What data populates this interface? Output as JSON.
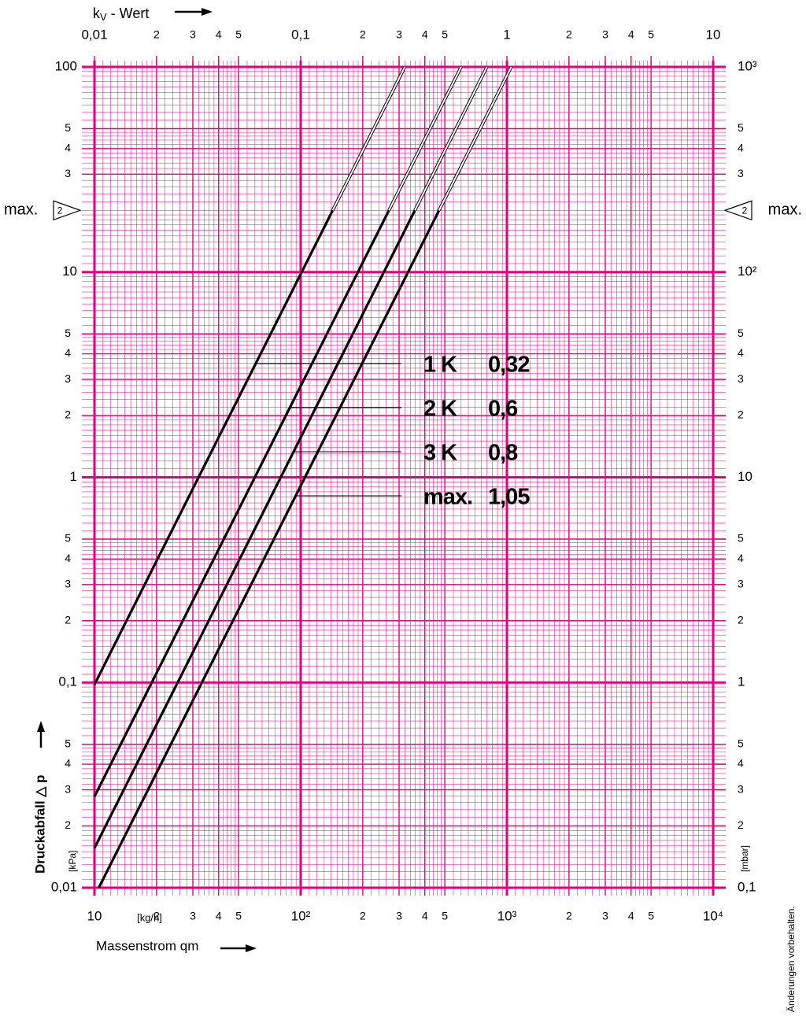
{
  "chart_data": {
    "type": "line",
    "kv_axis_label": {
      "main": "k",
      "sub": "V",
      "rest": " - Wert"
    },
    "x_label": "Massenstrom qm",
    "x_unit": "[kg/h]",
    "y_label": "Druckabfall △ p",
    "y_unit": "[kPa]",
    "y2_unit": "[mbar]",
    "log_x": true,
    "log_y": true,
    "grid": true,
    "grid_color": "#e6007e",
    "xlim": [
      10,
      10000
    ],
    "x2lim": [
      0.01,
      10
    ],
    "ylim": [
      0.01,
      100
    ],
    "y2lim": [
      0.1,
      1000
    ],
    "xticks": [
      10,
      {
        "value": 20,
        "label": "2"
      },
      {
        "value": 30,
        "label": "3"
      },
      {
        "value": 40,
        "label": "4"
      },
      {
        "value": 50,
        "label": "5"
      },
      {
        "value": 100,
        "label": "10²"
      },
      {
        "value": 200,
        "label": "2"
      },
      {
        "value": 300,
        "label": "3"
      },
      {
        "value": 400,
        "label": "4"
      },
      {
        "value": 500,
        "label": "5"
      },
      {
        "value": 1000,
        "label": "10³"
      },
      {
        "value": 2000,
        "label": "2"
      },
      {
        "value": 3000,
        "label": "3"
      },
      {
        "value": 4000,
        "label": "4"
      },
      {
        "value": 5000,
        "label": "5"
      },
      {
        "value": 10000,
        "label": "10⁴"
      }
    ],
    "x2ticks": [
      {
        "value": 0.01,
        "label": "0,01"
      },
      {
        "value": 0.02,
        "label": "2"
      },
      {
        "value": 0.03,
        "label": "3"
      },
      {
        "value": 0.04,
        "label": "4"
      },
      {
        "value": 0.05,
        "label": "5"
      },
      {
        "value": 0.1,
        "label": "0,1"
      },
      {
        "value": 0.2,
        "label": "2"
      },
      {
        "value": 0.3,
        "label": "3"
      },
      {
        "value": 0.4,
        "label": "4"
      },
      {
        "value": 0.5,
        "label": "5"
      },
      1,
      {
        "value": 2,
        "label": "2"
      },
      {
        "value": 3,
        "label": "3"
      },
      {
        "value": 4,
        "label": "4"
      },
      {
        "value": 5,
        "label": "5"
      },
      10
    ],
    "yticks": [
      {
        "value": 0.01,
        "label": "0,01"
      },
      {
        "value": 0.02,
        "label": "2"
      },
      {
        "value": 0.03,
        "label": "3"
      },
      {
        "value": 0.04,
        "label": "4"
      },
      {
        "value": 0.05,
        "label": "5"
      },
      {
        "value": 0.1,
        "label": "0,1"
      },
      {
        "value": 0.2,
        "label": "2"
      },
      {
        "value": 0.3,
        "label": "3"
      },
      {
        "value": 0.4,
        "label": "4"
      },
      {
        "value": 0.5,
        "label": "5"
      },
      1,
      2,
      3,
      4,
      5,
      10,
      {
        "value": 30,
        "label": "3"
      },
      {
        "value": 40,
        "label": "4"
      },
      {
        "value": 50,
        "label": "5"
      },
      100
    ],
    "y2ticks": [
      {
        "value": 0.1,
        "label": "0,1"
      },
      {
        "value": 0.2,
        "label": "2"
      },
      {
        "value": 0.3,
        "label": "3"
      },
      {
        "value": 0.4,
        "label": "4"
      },
      {
        "value": 0.5,
        "label": "5"
      },
      1,
      2,
      3,
      4,
      5,
      10,
      {
        "value": 20,
        "label": "2"
      },
      {
        "value": 30,
        "label": "3"
      },
      {
        "value": 40,
        "label": "4"
      },
      {
        "value": 50,
        "label": "5"
      },
      {
        "value": 100,
        "label": "10²"
      },
      {
        "value": 300,
        "label": "3"
      },
      {
        "value": 400,
        "label": "4"
      },
      {
        "value": 500,
        "label": "5"
      },
      {
        "value": 1000,
        "label": "10³"
      }
    ],
    "max_marker": {
      "label": "max.",
      "symbol": "2",
      "value": 20
    },
    "series": [
      {
        "name": "1 K",
        "kv_label": "0,32",
        "color": "#000000",
        "x": [
          10,
          143,
          320
        ],
        "values": [
          0.0977,
          20,
          100
        ]
      },
      {
        "name": "2 K",
        "kv_label": "0,6",
        "color": "#000000",
        "x": [
          10,
          268,
          600
        ],
        "values": [
          0.0278,
          20,
          100
        ]
      },
      {
        "name": "3 K",
        "kv_label": "0,8",
        "color": "#000000",
        "x": [
          10,
          358,
          800
        ],
        "values": [
          0.0156,
          20,
          100
        ]
      },
      {
        "name": "max.",
        "kv_label": "1,05",
        "color": "#000000",
        "x": [
          10.5,
          469,
          1050
        ],
        "values": [
          0.01,
          20,
          100
        ]
      }
    ],
    "footnote": "Änderungen vorbehalten."
  }
}
